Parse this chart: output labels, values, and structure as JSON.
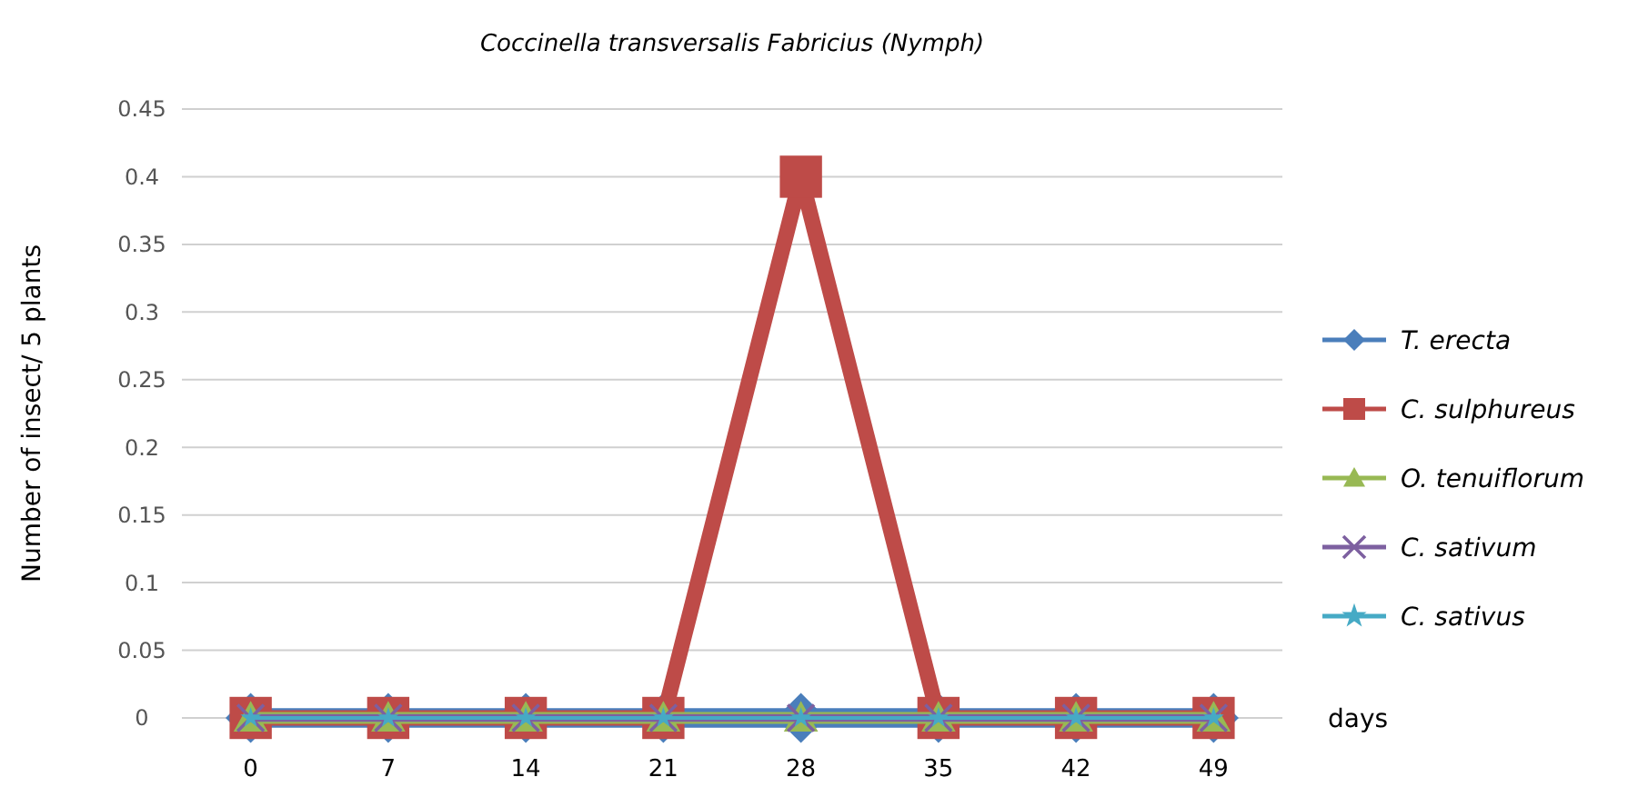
{
  "chart_data": {
    "type": "line",
    "title": "Coccinella transversalis Fabricius (Nymph)",
    "ylabel": "Number of insect/ 5 plants",
    "xlabel": "days",
    "categories": [
      "0",
      "7",
      "14",
      "21",
      "28",
      "35",
      "42",
      "49"
    ],
    "ylim": [
      0,
      0.45
    ],
    "yticks": [
      0,
      0.05,
      0.1,
      0.15,
      0.2,
      0.25,
      0.3,
      0.35,
      0.4,
      0.45
    ],
    "grid": "y",
    "legend": "right",
    "series": [
      {
        "name": "T. erecta",
        "color": "#4a7ebb",
        "marker": "diamond",
        "values": [
          0,
          0,
          0,
          0,
          0,
          0,
          0,
          0
        ]
      },
      {
        "name": "C. sulphureus",
        "color": "#be4b48",
        "marker": "square",
        "values": [
          0,
          0,
          0,
          0,
          0.4,
          0,
          0,
          0
        ]
      },
      {
        "name": "O. tenuiflorum",
        "color": "#98b954",
        "marker": "triangle",
        "values": [
          0,
          0,
          0,
          0,
          0,
          0,
          0,
          0
        ]
      },
      {
        "name": "C. sativum",
        "color": "#7d60a0",
        "marker": "cross",
        "values": [
          0,
          0,
          0,
          0,
          0,
          0,
          0,
          0
        ]
      },
      {
        "name": "C. sativus",
        "color": "#46aac5",
        "marker": "star",
        "values": [
          0,
          0,
          0,
          0,
          0,
          0,
          0,
          0
        ]
      }
    ]
  }
}
